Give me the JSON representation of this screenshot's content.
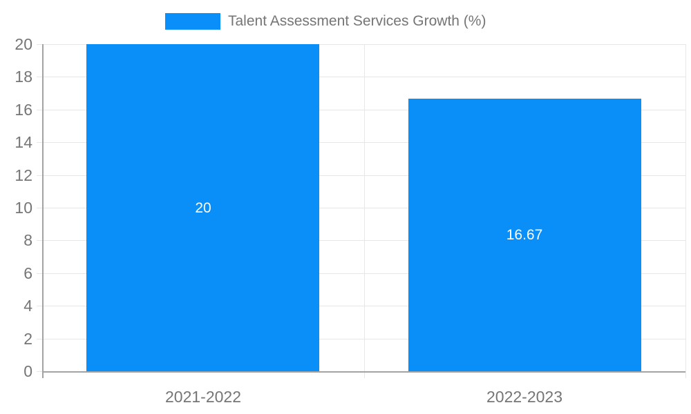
{
  "chart_data": {
    "type": "bar",
    "title": "",
    "categories": [
      "2021-2022",
      "2022-2023"
    ],
    "series": [
      {
        "name": "Talent Assessment Services Growth (%)",
        "values": [
          20,
          16.67
        ]
      }
    ],
    "value_labels": [
      "20",
      "16.67"
    ],
    "ylim": [
      0,
      20
    ],
    "ytick_step": 2,
    "ytick_labels": [
      "0",
      "2",
      "4",
      "6",
      "8",
      "10",
      "12",
      "14",
      "16",
      "18",
      "20"
    ],
    "grid": true,
    "legend_position": "top",
    "colors": {
      "bar": "#0a8ff9",
      "bar_label_text": "#ffffff",
      "axis_line": "#a2a2a2",
      "gridline": "#e6e6e6",
      "tick_label": "#757575",
      "legend_text": "#757575",
      "background": "#ffffff"
    }
  }
}
